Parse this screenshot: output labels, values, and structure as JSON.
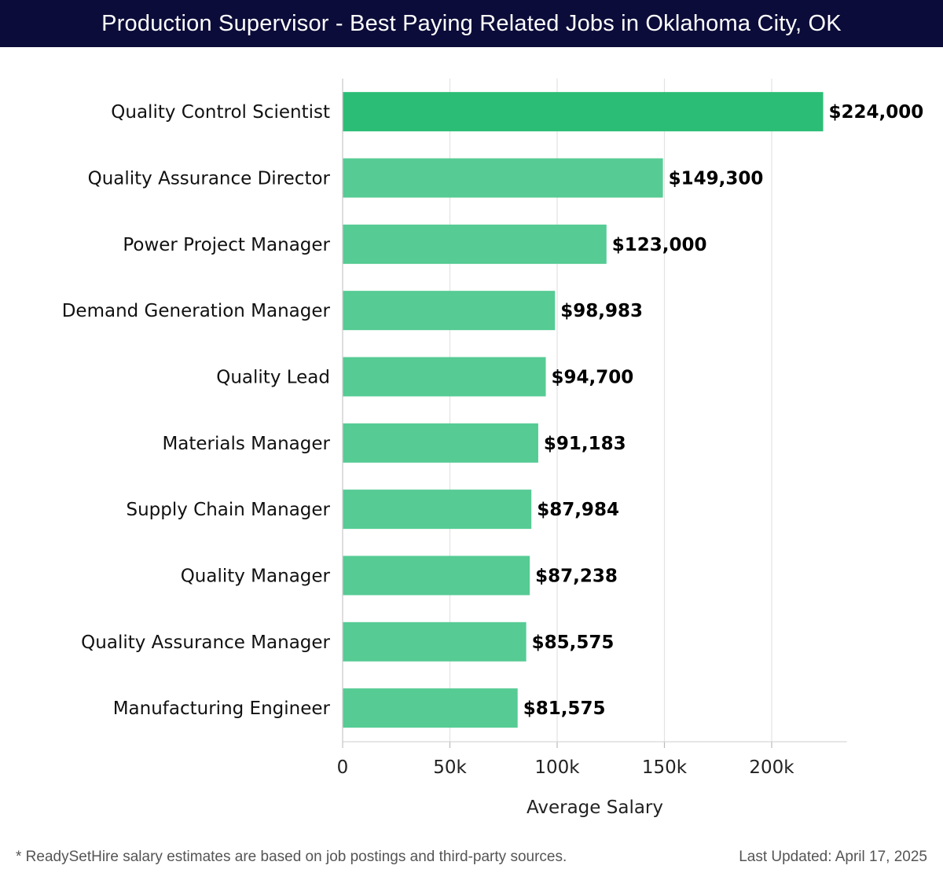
{
  "header": {
    "title": "Production Supervisor - Best Paying Related Jobs in Oklahoma City, OK"
  },
  "footer": {
    "note": "* ReadySetHire salary estimates are based on job postings and third-party sources.",
    "updated": "Last Updated: April 17, 2025"
  },
  "colors": {
    "header_bg": "#0c0c3a",
    "bar_top": "#2bbd76",
    "bar": "#56cb94",
    "grid": "#e3e3e3"
  },
  "chart_data": {
    "type": "bar",
    "orientation": "horizontal",
    "categories": [
      "Quality Control Scientist",
      "Quality Assurance Director",
      "Power Project Manager",
      "Demand Generation Manager",
      "Quality Lead",
      "Materials Manager",
      "Supply Chain Manager",
      "Quality Manager",
      "Quality Assurance Manager",
      "Manufacturing Engineer"
    ],
    "values": [
      224000,
      149300,
      123000,
      98983,
      94700,
      91183,
      87984,
      87238,
      85575,
      81575
    ],
    "value_labels": [
      "$224,000",
      "$149,300",
      "$123,000",
      "$98,983",
      "$94,700",
      "$91,183",
      "$87,984",
      "$87,238",
      "$85,575",
      "$81,575"
    ],
    "xlabel": "Average Salary",
    "xlim": [
      0,
      235000
    ],
    "x_ticks": [
      0,
      50000,
      100000,
      150000,
      200000
    ],
    "x_tick_labels": [
      "0",
      "50k",
      "100k",
      "150k",
      "200k"
    ],
    "grid": true
  }
}
